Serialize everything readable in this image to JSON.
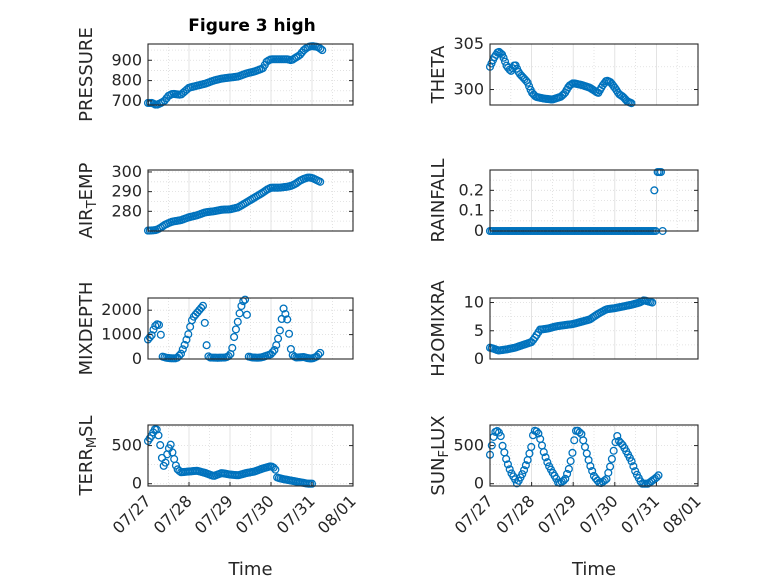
{
  "title": "Figure 3 high",
  "colors": {
    "marker": "#0072BD",
    "axis": "#262626",
    "grid": "#dcdcdc"
  },
  "chart_data": [
    {
      "type": "scatter",
      "xlabel": "",
      "ylabel": "PRESSURE",
      "ylabel_sub": "",
      "ylabel_tail": "",
      "ylim": [
        680,
        980
      ],
      "yticks": [
        700,
        800,
        900
      ],
      "ytick_labels": [
        "700",
        "800",
        "900"
      ],
      "xlim": [
        0,
        5
      ],
      "xticks": [],
      "xtick_labels": [],
      "anchors": [
        [
          0.0,
          690
        ],
        [
          0.1,
          690
        ],
        [
          0.2,
          680
        ],
        [
          0.3,
          688
        ],
        [
          0.4,
          700
        ],
        [
          0.5,
          725
        ],
        [
          0.6,
          735
        ],
        [
          0.8,
          730
        ],
        [
          1.0,
          765
        ],
        [
          1.2,
          775
        ],
        [
          1.4,
          785
        ],
        [
          1.6,
          800
        ],
        [
          1.8,
          810
        ],
        [
          2.0,
          815
        ],
        [
          2.2,
          820
        ],
        [
          2.4,
          835
        ],
        [
          2.6,
          845
        ],
        [
          2.8,
          860
        ],
        [
          2.9,
          895
        ],
        [
          3.0,
          905
        ],
        [
          3.2,
          905
        ],
        [
          3.4,
          905
        ],
        [
          3.5,
          900
        ],
        [
          3.7,
          925
        ],
        [
          3.8,
          950
        ],
        [
          3.9,
          965
        ],
        [
          4.0,
          970
        ],
        [
          4.15,
          965
        ],
        [
          4.25,
          950
        ]
      ]
    },
    {
      "type": "scatter",
      "xlabel": "",
      "ylabel": "THETA",
      "ylabel_sub": "",
      "ylabel_tail": "",
      "ylim": [
        298.3,
        305
      ],
      "yticks": [
        300,
        305
      ],
      "ytick_labels": [
        "300",
        "305"
      ],
      "xlim": [
        0,
        5
      ],
      "xticks": [],
      "xtick_labels": [],
      "anchors": [
        [
          0.0,
          302.5
        ],
        [
          0.1,
          303.5
        ],
        [
          0.2,
          304.2
        ],
        [
          0.3,
          303.8
        ],
        [
          0.4,
          302.6
        ],
        [
          0.5,
          302.0
        ],
        [
          0.6,
          302.8
        ],
        [
          0.7,
          301.8
        ],
        [
          0.8,
          301.3
        ],
        [
          0.9,
          300.8
        ],
        [
          1.0,
          299.7
        ],
        [
          1.1,
          299.2
        ],
        [
          1.3,
          299.0
        ],
        [
          1.5,
          298.9
        ],
        [
          1.7,
          299.2
        ],
        [
          1.8,
          299.6
        ],
        [
          1.9,
          300.4
        ],
        [
          2.0,
          300.7
        ],
        [
          2.2,
          300.5
        ],
        [
          2.4,
          300.2
        ],
        [
          2.6,
          299.6
        ],
        [
          2.7,
          300.4
        ],
        [
          2.8,
          301.0
        ],
        [
          2.9,
          300.8
        ],
        [
          3.0,
          300.2
        ],
        [
          3.1,
          299.5
        ],
        [
          3.2,
          299.2
        ],
        [
          3.3,
          298.7
        ],
        [
          3.4,
          298.5
        ]
      ]
    },
    {
      "type": "scatter",
      "xlabel": "",
      "ylabel": "AIR",
      "ylabel_sub": "T",
      "ylabel_tail": "EMP",
      "ylim": [
        270,
        301
      ],
      "yticks": [
        280,
        290,
        300
      ],
      "ytick_labels": [
        "280",
        "290",
        "300"
      ],
      "xlim": [
        0,
        5
      ],
      "xticks": [],
      "xtick_labels": [],
      "anchors": [
        [
          0.0,
          270.2
        ],
        [
          0.1,
          270.3
        ],
        [
          0.2,
          270.5
        ],
        [
          0.3,
          271.5
        ],
        [
          0.4,
          273.0
        ],
        [
          0.5,
          274.0
        ],
        [
          0.6,
          274.8
        ],
        [
          0.8,
          275.5
        ],
        [
          1.0,
          277.0
        ],
        [
          1.2,
          278.0
        ],
        [
          1.4,
          279.5
        ],
        [
          1.6,
          280.0
        ],
        [
          1.8,
          280.8
        ],
        [
          2.0,
          281.0
        ],
        [
          2.2,
          282.0
        ],
        [
          2.4,
          284.5
        ],
        [
          2.6,
          287.0
        ],
        [
          2.8,
          289.5
        ],
        [
          2.9,
          291.0
        ],
        [
          3.0,
          292.0
        ],
        [
          3.2,
          292.0
        ],
        [
          3.4,
          292.5
        ],
        [
          3.5,
          293.0
        ],
        [
          3.6,
          294.0
        ],
        [
          3.7,
          295.5
        ],
        [
          3.8,
          296.5
        ],
        [
          3.9,
          297.2
        ],
        [
          4.0,
          297.0
        ],
        [
          4.1,
          296.0
        ],
        [
          4.2,
          295.0
        ]
      ]
    },
    {
      "type": "scatter",
      "xlabel": "",
      "ylabel": "RAINFALL",
      "ylabel_sub": "",
      "ylabel_tail": "",
      "ylim": [
        0,
        0.3
      ],
      "yticks": [
        0,
        0.1,
        0.2
      ],
      "ytick_labels": [
        "0",
        "0.1",
        "0.2"
      ],
      "xlim": [
        0,
        5
      ],
      "xticks": [],
      "xtick_labels": [],
      "anchors": [
        [
          0.0,
          0
        ],
        [
          3.98,
          0
        ]
      ],
      "extra_points": [
        [
          3.95,
          0.2
        ],
        [
          4.03,
          0.29
        ],
        [
          4.07,
          0.29
        ],
        [
          4.11,
          0.29
        ],
        [
          4.15,
          0
        ]
      ]
    },
    {
      "type": "scatter",
      "xlabel": "",
      "ylabel": "MIXDEPTH",
      "ylabel_sub": "",
      "ylabel_tail": "",
      "ylim": [
        0,
        2500
      ],
      "yticks": [
        0,
        1000,
        2000
      ],
      "ytick_labels": [
        "0",
        "1000",
        "2000"
      ],
      "xlim": [
        0,
        5
      ],
      "xticks": [],
      "xtick_labels": [],
      "anchors": [
        [
          0.0,
          800
        ],
        [
          0.1,
          1000
        ],
        [
          0.15,
          1300
        ],
        [
          0.2,
          1400
        ],
        [
          0.25,
          1450
        ],
        [
          0.3,
          1300
        ],
        [
          0.35,
          100
        ],
        [
          0.45,
          50
        ],
        [
          0.55,
          30
        ],
        [
          0.7,
          30
        ],
        [
          0.8,
          200
        ],
        [
          0.9,
          600
        ],
        [
          1.0,
          1100
        ],
        [
          1.05,
          1500
        ],
        [
          1.1,
          1700
        ],
        [
          1.2,
          1900
        ],
        [
          1.3,
          2100
        ],
        [
          1.35,
          2200
        ],
        [
          1.45,
          150
        ],
        [
          1.5,
          60
        ],
        [
          1.7,
          50
        ],
        [
          1.9,
          60
        ],
        [
          2.0,
          150
        ],
        [
          2.05,
          400
        ],
        [
          2.1,
          900
        ],
        [
          2.2,
          1600
        ],
        [
          2.25,
          2000
        ],
        [
          2.3,
          2300
        ],
        [
          2.35,
          2450
        ],
        [
          2.4,
          2400
        ],
        [
          2.45,
          100
        ],
        [
          2.55,
          60
        ],
        [
          2.7,
          50
        ],
        [
          2.8,
          80
        ],
        [
          3.0,
          200
        ],
        [
          3.1,
          400
        ],
        [
          3.15,
          700
        ],
        [
          3.2,
          1000
        ],
        [
          3.25,
          1500
        ],
        [
          3.3,
          2100
        ],
        [
          3.4,
          1600
        ],
        [
          3.45,
          900
        ],
        [
          3.5,
          200
        ],
        [
          3.6,
          60
        ],
        [
          3.8,
          80
        ],
        [
          3.9,
          30
        ],
        [
          4.0,
          20
        ],
        [
          4.1,
          80
        ],
        [
          4.2,
          250
        ]
      ]
    },
    {
      "type": "scatter",
      "xlabel": "",
      "ylabel": "H2OMIXRA",
      "ylabel_sub": "",
      "ylabel_tail": "",
      "ylim": [
        0,
        10.8
      ],
      "yticks": [
        0,
        5,
        10
      ],
      "ytick_labels": [
        "0",
        "5",
        "10"
      ],
      "xlim": [
        0,
        5
      ],
      "xticks": [],
      "xtick_labels": [],
      "anchors": [
        [
          0.0,
          2.0
        ],
        [
          0.1,
          1.8
        ],
        [
          0.2,
          1.5
        ],
        [
          0.4,
          1.7
        ],
        [
          0.6,
          2.0
        ],
        [
          0.8,
          2.5
        ],
        [
          1.0,
          3.0
        ],
        [
          1.1,
          4.0
        ],
        [
          1.2,
          5.2
        ],
        [
          1.4,
          5.4
        ],
        [
          1.6,
          5.8
        ],
        [
          1.8,
          6.0
        ],
        [
          2.0,
          6.2
        ],
        [
          2.2,
          6.6
        ],
        [
          2.4,
          7.0
        ],
        [
          2.6,
          8.0
        ],
        [
          2.7,
          8.4
        ],
        [
          2.8,
          8.8
        ],
        [
          3.0,
          9.0
        ],
        [
          3.2,
          9.3
        ],
        [
          3.4,
          9.6
        ],
        [
          3.6,
          10.0
        ],
        [
          3.7,
          10.4
        ],
        [
          3.8,
          10.2
        ],
        [
          3.9,
          10.0
        ]
      ]
    },
    {
      "type": "scatter",
      "xlabel": "Time",
      "ylabel": "TERR",
      "ylabel_sub": "M",
      "ylabel_tail": "SL",
      "ylim": [
        -30,
        770
      ],
      "yticks": [
        0,
        500
      ],
      "ytick_labels": [
        "0",
        "500"
      ],
      "xlim": [
        0,
        5
      ],
      "xticks": [
        0,
        1,
        2,
        3,
        4,
        5
      ],
      "xtick_labels": [
        "07/27",
        "07/28",
        "07/29",
        "07/30",
        "07/31",
        "08/01"
      ],
      "anchors": [
        [
          0.0,
          560
        ],
        [
          0.1,
          640
        ],
        [
          0.15,
          700
        ],
        [
          0.2,
          730
        ],
        [
          0.25,
          650
        ],
        [
          0.3,
          500
        ],
        [
          0.35,
          300
        ],
        [
          0.4,
          200
        ],
        [
          0.45,
          350
        ],
        [
          0.5,
          450
        ],
        [
          0.55,
          520
        ],
        [
          0.6,
          400
        ],
        [
          0.7,
          200
        ],
        [
          0.8,
          150
        ],
        [
          1.0,
          160
        ],
        [
          1.2,
          170
        ],
        [
          1.4,
          140
        ],
        [
          1.6,
          100
        ],
        [
          1.8,
          140
        ],
        [
          2.0,
          120
        ],
        [
          2.2,
          110
        ],
        [
          2.4,
          140
        ],
        [
          2.6,
          160
        ],
        [
          2.8,
          200
        ],
        [
          3.0,
          230
        ],
        [
          3.1,
          200
        ],
        [
          3.15,
          80
        ],
        [
          3.3,
          60
        ],
        [
          3.5,
          40
        ],
        [
          3.7,
          20
        ],
        [
          3.8,
          10
        ],
        [
          3.9,
          0
        ],
        [
          4.0,
          0
        ]
      ]
    },
    {
      "type": "scatter",
      "xlabel": "Time",
      "ylabel": "SUN",
      "ylabel_sub": "F",
      "ylabel_tail": "LUX",
      "ylim": [
        -30,
        770
      ],
      "yticks": [
        0,
        500
      ],
      "ytick_labels": [
        "0",
        "500"
      ],
      "xlim": [
        0,
        5
      ],
      "xticks": [
        0,
        1,
        2,
        3,
        4,
        5
      ],
      "xtick_labels": [
        "07/27",
        "07/28",
        "07/29",
        "07/30",
        "07/31",
        "08/01"
      ],
      "anchors": [
        [
          0.0,
          380
        ],
        [
          0.05,
          520
        ],
        [
          0.1,
          650
        ],
        [
          0.15,
          700
        ],
        [
          0.2,
          680
        ],
        [
          0.25,
          650
        ],
        [
          0.3,
          500
        ],
        [
          0.4,
          300
        ],
        [
          0.5,
          150
        ],
        [
          0.6,
          60
        ],
        [
          0.65,
          0
        ],
        [
          0.7,
          50
        ],
        [
          0.8,
          150
        ],
        [
          0.9,
          300
        ],
        [
          1.0,
          500
        ],
        [
          1.05,
          700
        ],
        [
          1.1,
          690
        ],
        [
          1.15,
          680
        ],
        [
          1.2,
          600
        ],
        [
          1.3,
          400
        ],
        [
          1.4,
          250
        ],
        [
          1.5,
          150
        ],
        [
          1.6,
          60
        ],
        [
          1.65,
          0
        ],
        [
          1.8,
          50
        ],
        [
          1.9,
          200
        ],
        [
          2.0,
          450
        ],
        [
          2.05,
          690
        ],
        [
          2.1,
          700
        ],
        [
          2.2,
          650
        ],
        [
          2.3,
          450
        ],
        [
          2.4,
          250
        ],
        [
          2.5,
          100
        ],
        [
          2.6,
          30
        ],
        [
          2.65,
          0
        ],
        [
          2.8,
          60
        ],
        [
          2.9,
          250
        ],
        [
          3.0,
          500
        ],
        [
          3.05,
          640
        ],
        [
          3.1,
          560
        ],
        [
          3.2,
          500
        ],
        [
          3.3,
          400
        ],
        [
          3.4,
          300
        ],
        [
          3.5,
          150
        ],
        [
          3.6,
          50
        ],
        [
          3.65,
          0
        ],
        [
          3.8,
          0
        ],
        [
          3.9,
          40
        ],
        [
          4.0,
          80
        ],
        [
          4.05,
          110
        ]
      ]
    }
  ]
}
